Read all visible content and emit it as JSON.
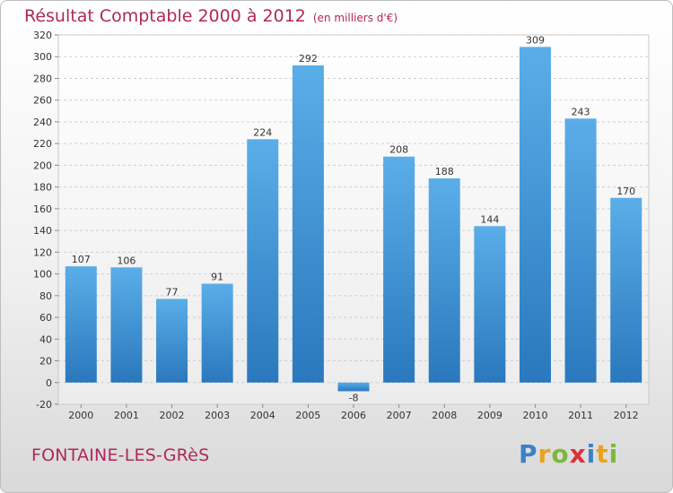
{
  "header": {
    "title": "Résultat Comptable 2000 à 2012",
    "subtitle": "(en milliers d'€)"
  },
  "footer": {
    "commune": "FONTAINE-LES-GRèS",
    "brand": "Proxiti",
    "brand_colors": [
      "#3b82c4",
      "#e9a21f",
      "#7db83a",
      "#d9323c",
      "#3b82c4",
      "#e9a21f",
      "#7db83a"
    ]
  },
  "chart_data": {
    "type": "bar",
    "title": "Résultat Comptable 2000 à 2012",
    "subtitle": "(en milliers d'€)",
    "categories": [
      "2000",
      "2001",
      "2002",
      "2003",
      "2004",
      "2005",
      "2006",
      "2007",
      "2008",
      "2009",
      "2010",
      "2011",
      "2012"
    ],
    "values": [
      107,
      106,
      77,
      91,
      224,
      292,
      -8,
      208,
      188,
      144,
      309,
      243,
      170
    ],
    "ylim": [
      -20,
      320
    ],
    "yticks": [
      -20,
      0,
      20,
      40,
      60,
      80,
      100,
      120,
      140,
      160,
      180,
      200,
      220,
      240,
      260,
      280,
      300,
      320
    ],
    "grid": true,
    "bar_color": "#3a8fd6"
  }
}
